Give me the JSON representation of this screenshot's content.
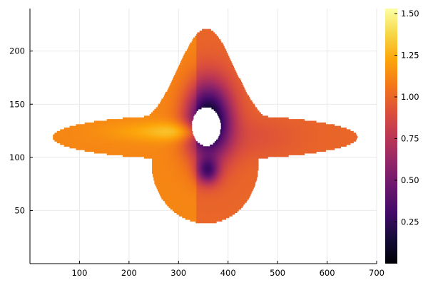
{
  "chart_data": {
    "type": "heatmap",
    "title": "",
    "xlabel": "",
    "ylabel": "",
    "xlim": [
      0,
      700
    ],
    "ylim": [
      0,
      240
    ],
    "grid": true,
    "legend": "none",
    "x_ticks": [
      {
        "value": 100,
        "label": "100"
      },
      {
        "value": 200,
        "label": "200"
      },
      {
        "value": 300,
        "label": "300"
      },
      {
        "value": 400,
        "label": "400"
      },
      {
        "value": 500,
        "label": "500"
      },
      {
        "value": 600,
        "label": "600"
      },
      {
        "value": 700,
        "label": "700"
      }
    ],
    "y_ticks": [
      {
        "value": 50,
        "label": "50"
      },
      {
        "value": 100,
        "label": "100"
      },
      {
        "value": 150,
        "label": "150"
      },
      {
        "value": 200,
        "label": "200"
      }
    ],
    "colorbar": {
      "colormap": "inferno",
      "min": 0.0,
      "max": 1.53,
      "ticks": [
        {
          "value": 0.25,
          "label": "0.25"
        },
        {
          "value": 0.5,
          "label": "0.50"
        },
        {
          "value": 0.75,
          "label": "0.75"
        },
        {
          "value": 1.0,
          "label": "1.00"
        },
        {
          "value": 1.25,
          "label": "1.25"
        },
        {
          "value": 1.5,
          "label": "1.50"
        }
      ]
    },
    "field": {
      "base_value": 1.0,
      "disk": {
        "center": [
          355,
          120
        ],
        "x_extent": [
          45,
          660
        ],
        "half_thickness": 21
      },
      "upper_lobe": {
        "center_x": 355,
        "peak_y": 222,
        "half_width": 80
      },
      "lower_lobe": {
        "center": [
          355,
          95
        ],
        "x_extent": [
          245,
          460
        ],
        "bottom_y": 39
      },
      "hole": {
        "center": [
          355,
          130
        ],
        "x_extent": [
          325,
          384
        ],
        "y_extent": [
          111,
          148
        ]
      },
      "low_region": {
        "center": [
          360,
          135
        ],
        "min_value": 0.02
      },
      "high_region": {
        "center": [
          325,
          125
        ],
        "max_value": 1.45
      }
    }
  }
}
